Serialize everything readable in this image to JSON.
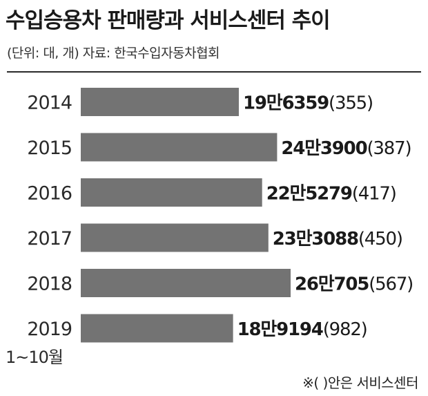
{
  "header": {
    "title": "수입승용차 판매량과 서비스센터 추이",
    "subtitle": "(단위: 대, 개) 자료: 한국수입자동차협회"
  },
  "footnote": "※( )안은 서비스센터",
  "colors": {
    "bar": "#737373",
    "text": "#1a1a1a"
  },
  "chart_data": {
    "type": "bar",
    "orientation": "horizontal",
    "categories": [
      "2014",
      "2015",
      "2016",
      "2017",
      "2018",
      "2019"
    ],
    "category_sublabels": [
      "",
      "",
      "",
      "",
      "",
      "1~10월"
    ],
    "values": [
      196359,
      243900,
      225279,
      233088,
      260705,
      189194
    ],
    "value_labels": [
      "19만6359",
      "24만3900",
      "22만5279",
      "23만3088",
      "26만705",
      "18만9194"
    ],
    "secondary_labels": [
      "(355)",
      "(387)",
      "(417)",
      "(450)",
      "(567)",
      "(982)"
    ],
    "secondary_values": [
      355,
      387,
      417,
      450,
      567,
      982
    ],
    "xlim": [
      0,
      260705
    ],
    "grid": false,
    "legend": "none"
  }
}
